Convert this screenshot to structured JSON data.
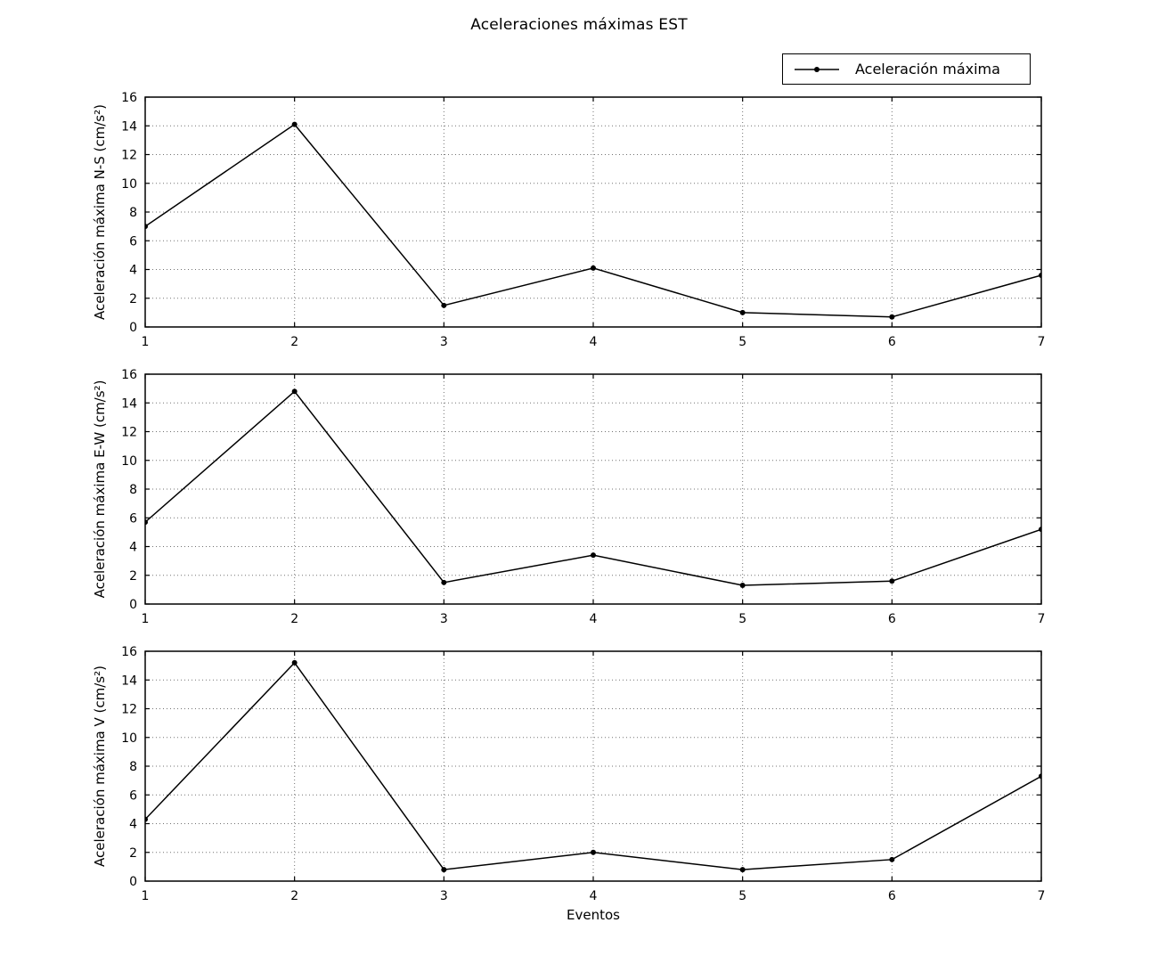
{
  "figure": {
    "title": "Aceleraciones máximas EST",
    "xlabel": "Eventos",
    "legend_label": "Aceleración máxima"
  },
  "chart_data": {
    "type": "line",
    "title": "Aceleraciones máximas EST",
    "xlabel": "Eventos",
    "x": [
      1,
      2,
      3,
      4,
      5,
      6,
      7
    ],
    "xticks": [
      1,
      2,
      3,
      4,
      5,
      6,
      7
    ],
    "yticks": [
      0,
      2,
      4,
      6,
      8,
      10,
      12,
      14,
      16
    ],
    "xlim": [
      1,
      7
    ],
    "ylim": [
      0,
      16
    ],
    "grid": "dotted",
    "legend": {
      "position": "upper right above axes",
      "entries": [
        "Aceleración máxima"
      ]
    },
    "line_color": "#000000",
    "marker": "point",
    "subplots": [
      {
        "ylabel": "Aceleración máxima N-S (cm/s²)",
        "series": [
          {
            "name": "Aceleración máxima",
            "values": [
              7.0,
              14.1,
              1.5,
              4.1,
              1.0,
              0.7,
              3.6
            ]
          }
        ]
      },
      {
        "ylabel": "Aceleración máxima E-W (cm/s²)",
        "series": [
          {
            "name": "Aceleración máxima",
            "values": [
              5.7,
              14.8,
              1.5,
              3.4,
              1.3,
              1.6,
              5.2
            ]
          }
        ]
      },
      {
        "ylabel": "Aceleración máxima V (cm/s²)",
        "series": [
          {
            "name": "Aceleración máxima",
            "values": [
              4.3,
              15.2,
              0.8,
              2.0,
              0.8,
              1.5,
              7.3
            ]
          }
        ]
      }
    ]
  }
}
